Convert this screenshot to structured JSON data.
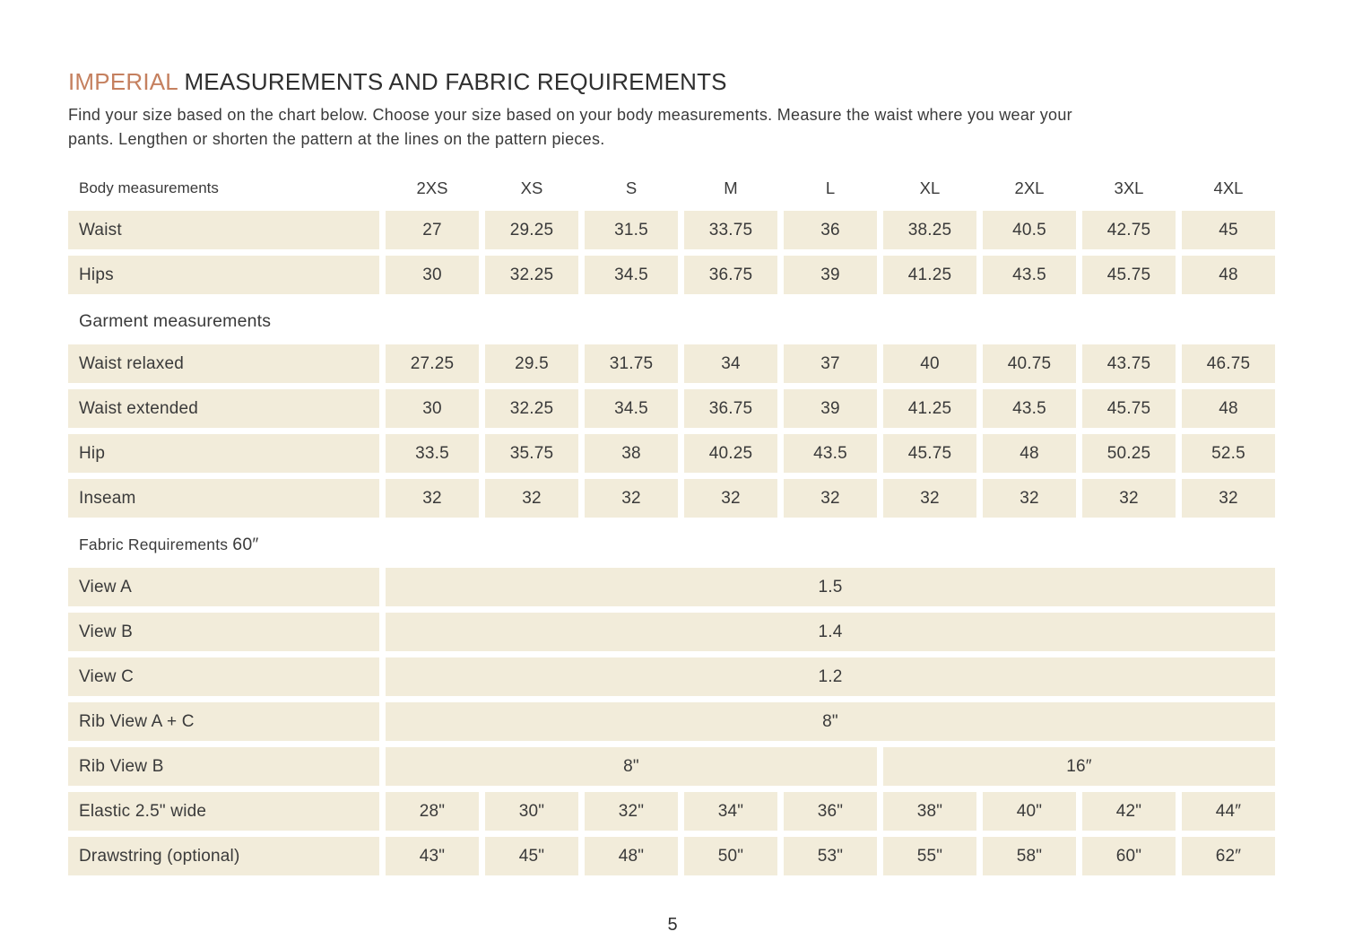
{
  "colors": {
    "accent": "#c5805f",
    "cell_background": "#f2ecda",
    "text": "#3b3b3b"
  },
  "header": {
    "title_accent": "IMPERIAL",
    "title_rest": " MEASUREMENTS AND FABRIC REQUIREMENTS",
    "intro_line1": "Find your size based on the chart below. Choose your size based on your body measurements. Measure the waist where you wear your",
    "intro_line2": "pants. Lengthen or shorten the pattern at the lines on the pattern pieces."
  },
  "table": {
    "header_label": "Body measurements",
    "sizes": [
      "2XS",
      "XS",
      "S",
      "M",
      "L",
      "XL",
      "2XL",
      "3XL",
      "4XL"
    ],
    "body_rows": [
      {
        "label": "Waist",
        "values": [
          "27",
          "29.25",
          "31.5",
          "33.75",
          "36",
          "38.25",
          "40.5",
          "42.75",
          "45"
        ]
      },
      {
        "label": "Hips",
        "values": [
          "30",
          "32.25",
          "34.5",
          "36.75",
          "39",
          "41.25",
          "43.5",
          "45.75",
          "48"
        ]
      }
    ],
    "garment_heading": "Garment measurements",
    "garment_rows": [
      {
        "label": "Waist relaxed",
        "values": [
          "27.25",
          "29.5",
          "31.75",
          "34",
          "37",
          "40",
          "40.75",
          "43.75",
          "46.75"
        ]
      },
      {
        "label": "Waist extended",
        "values": [
          "30",
          "32.25",
          "34.5",
          "36.75",
          "39",
          "41.25",
          "43.5",
          "45.75",
          "48"
        ]
      },
      {
        "label": "Hip",
        "values": [
          "33.5",
          "35.75",
          "38",
          "40.25",
          "43.5",
          "45.75",
          "48",
          "50.25",
          "52.5"
        ]
      },
      {
        "label": "Inseam",
        "values": [
          "32",
          "32",
          "32",
          "32",
          "32",
          "32",
          "32",
          "32",
          "32"
        ]
      }
    ],
    "fabric_heading": "Fabric Requirements",
    "fabric_heading_suffix": "60″",
    "fabric_full_rows": [
      {
        "label": "View A",
        "value": "1.5"
      },
      {
        "label": "View B",
        "value": "1.4"
      },
      {
        "label": "View C",
        "value": "1.2"
      },
      {
        "label": "Rib View A + C",
        "value": "8\""
      }
    ],
    "fabric_split_row": {
      "label": "Rib View B",
      "left_value": "8\"",
      "right_value": "16″"
    },
    "fabric_size_rows": [
      {
        "label": "Elastic 2.5\" wide",
        "values": [
          "28\"",
          "30\"",
          "32\"",
          "34\"",
          "36\"",
          "38\"",
          "40\"",
          "42\"",
          "44″"
        ]
      },
      {
        "label": "Drawstring (optional)",
        "values": [
          "43\"",
          "45\"",
          "48\"",
          "50\"",
          "53\"",
          "55\"",
          "58\"",
          "60\"",
          "62″"
        ]
      }
    ]
  },
  "footer": {
    "page_number": "5"
  }
}
